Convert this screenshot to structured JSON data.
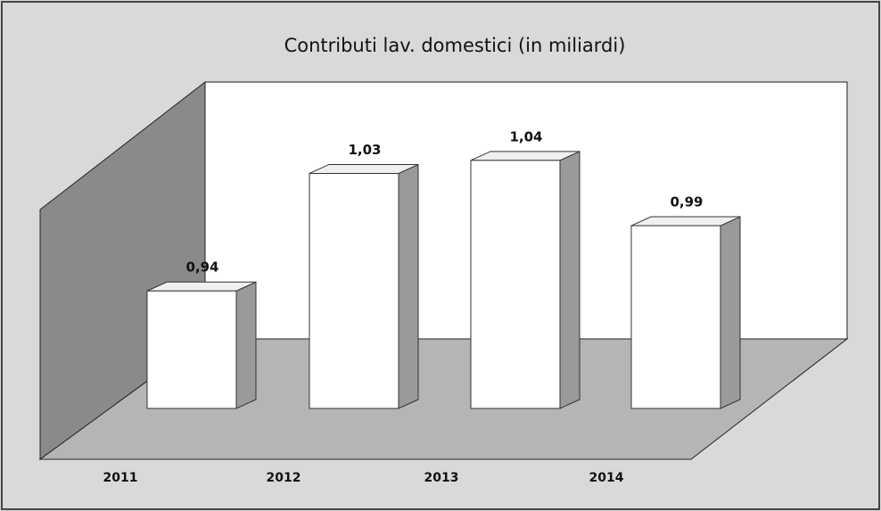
{
  "chart_data": {
    "type": "bar3d",
    "title": "Contributi lav. domestici  (in miliardi)",
    "categories": [
      "2011",
      "2012",
      "2013",
      "2014"
    ],
    "values": [
      0.94,
      1.03,
      1.04,
      0.99
    ],
    "value_labels": [
      "0,94",
      "1,03",
      "1,04",
      "0,99"
    ],
    "color": "#ffffff",
    "ylim": [
      0.85,
      1.1
    ]
  }
}
